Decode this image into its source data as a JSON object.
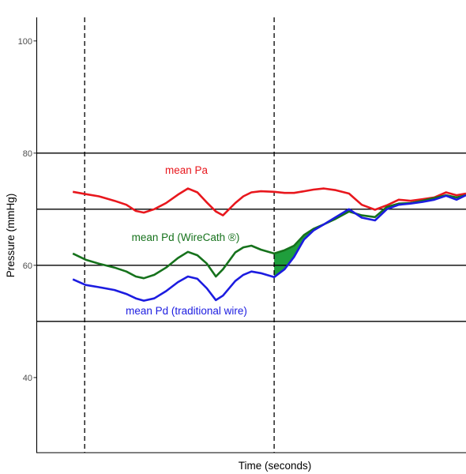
{
  "chart_data": {
    "type": "line",
    "title": "",
    "xlabel": "Time (seconds)",
    "ylabel": "Pressure (mmHg)",
    "xlim": [
      -0.2,
      90.5
    ],
    "ylim": [
      26.6,
      104.2
    ],
    "yticks": [
      40,
      60,
      80,
      100
    ],
    "xticks": [],
    "grid": false,
    "legend": "none",
    "hlines": [
      50,
      60,
      70,
      80
    ],
    "vlines": [
      10,
      50
    ],
    "x": [
      7.5,
      10.2,
      13.0,
      16.3,
      18.8,
      20.8,
      22.5,
      24.7,
      27.2,
      29.7,
      31.8,
      33.8,
      35.8,
      37.7,
      39.2,
      41.8,
      43.5,
      45.2,
      47.2,
      50.0,
      52.2,
      54.2,
      56.3,
      58.3,
      60.5,
      63.0,
      65.8,
      68.5,
      71.3,
      73.8,
      76.3,
      78.8,
      81.3,
      83.8,
      86.3,
      88.5,
      90.5
    ],
    "series": [
      {
        "name": "mean Pa",
        "color": "#e8171d",
        "values": [
          73.1,
          72.7,
          72.3,
          71.5,
          70.8,
          69.7,
          69.4,
          70.0,
          71.1,
          72.6,
          73.7,
          73.0,
          71.2,
          69.6,
          68.9,
          71.1,
          72.3,
          73.0,
          73.2,
          73.1,
          72.9,
          72.9,
          73.2,
          73.5,
          73.7,
          73.4,
          72.8,
          70.8,
          69.9,
          70.7,
          71.7,
          71.5,
          71.8,
          72.1,
          73.0,
          72.5,
          72.8
        ]
      },
      {
        "name": "mean Pd (WireCath ®)",
        "color": "#16721c",
        "values": [
          62.1,
          61.0,
          60.3,
          59.6,
          58.9,
          58.0,
          57.7,
          58.3,
          59.6,
          61.3,
          62.4,
          61.8,
          60.3,
          58.0,
          59.3,
          62.3,
          63.2,
          63.5,
          62.8,
          62.1,
          62.7,
          63.5,
          65.4,
          66.5,
          67.3,
          68.3,
          69.6,
          68.9,
          68.6,
          70.4,
          71.0,
          71.1,
          71.5,
          72.0,
          72.5,
          72.1,
          72.5
        ]
      },
      {
        "name": "mean Pd (traditional wire)",
        "color": "#1c1ce0",
        "values": [
          57.5,
          56.5,
          56.1,
          55.6,
          54.9,
          54.1,
          53.7,
          54.1,
          55.4,
          57.0,
          58.0,
          57.6,
          55.9,
          53.8,
          54.6,
          57.2,
          58.3,
          58.9,
          58.6,
          57.9,
          59.3,
          61.5,
          64.6,
          66.2,
          67.3,
          68.6,
          70.0,
          68.5,
          68.0,
          70.0,
          70.8,
          71.0,
          71.3,
          71.7,
          72.4,
          71.7,
          72.5
        ]
      }
    ],
    "shaded_region": {
      "upper_series": 1,
      "lower_series": 2,
      "x_from": 50,
      "x_to": 60.5,
      "color": "#1f9e3c"
    }
  }
}
